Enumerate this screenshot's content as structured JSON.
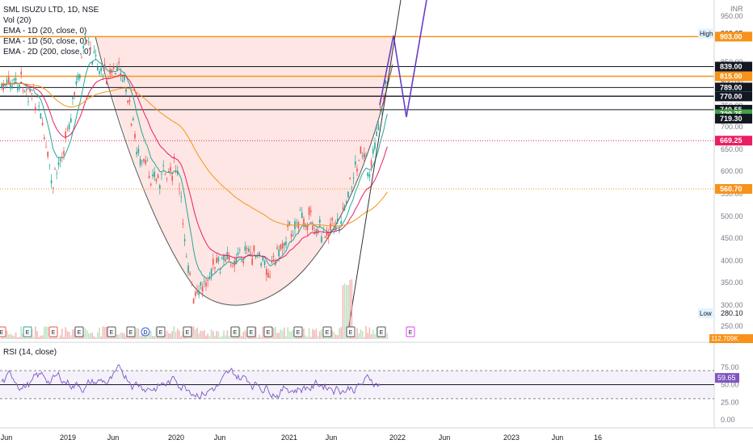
{
  "header": {
    "symbol_line": "SML ISUZU LTD, 1D, NSE",
    "vol_line": "Vol (20)",
    "ema_lines": [
      "EMA - 1D (20, close, 0)",
      "EMA - 1D (50, close, 0)",
      "EMA - 2D (200, close, 0)"
    ]
  },
  "currency": "INR",
  "rsi_title": "RSI (14, close)",
  "colors": {
    "up": "#26a69a",
    "down": "#ef5350",
    "orange": "#f7931a",
    "purple": "#6a3dc7",
    "rsi_line": "#7e57c2",
    "cup_fill": "#fbd5d0"
  },
  "chart_data": {
    "type": "candlestick",
    "price_ticks": [
      "950.00",
      "850.00",
      "800.00",
      "750.00",
      "700.00",
      "650.00",
      "600.00",
      "550.00",
      "500.00",
      "450.00",
      "400.00",
      "350.00",
      "300.00",
      "250.00"
    ],
    "price_range": [
      240,
      960
    ],
    "price_labels": [
      {
        "value": 903.0,
        "text": "903.00",
        "bg": "#f7931a",
        "fg": "#ffffff"
      },
      {
        "value": 839.0,
        "text": "839.00",
        "bg": "#131722",
        "fg": "#ffffff"
      },
      {
        "value": 815.0,
        "text": "815.00",
        "bg": "#f7931a",
        "fg": "#ffffff"
      },
      {
        "value": 789.0,
        "text": "789.00",
        "bg": "#131722",
        "fg": "#ffffff"
      },
      {
        "value": 770.65,
        "text": "770.65",
        "bg": "#26a69a",
        "fg": "#ffffff"
      },
      {
        "value": 770.0,
        "text": "770.00",
        "bg": "#131722",
        "fg": "#ffffff"
      },
      {
        "value": 740.55,
        "text": "740.55",
        "bg": "#131722",
        "fg": "#ffffff"
      },
      {
        "value": 729.75,
        "text": "729.75",
        "bg": "#43a047",
        "fg": "#ffffff"
      },
      {
        "value": 719.3,
        "text": "719.30",
        "bg": "#131722",
        "fg": "#ffffff"
      },
      {
        "value": 669.25,
        "text": "669.25",
        "bg": "#e91e63",
        "fg": "#ffffff"
      },
      {
        "value": 560.7,
        "text": "560.70",
        "bg": "#f7931a",
        "fg": "#ffffff"
      }
    ],
    "high": {
      "label": "High",
      "value": "909.95"
    },
    "low": {
      "label": "Low",
      "value": "280.10"
    },
    "volume_label": "112.709K",
    "rsi": {
      "ticks": [
        "75.00",
        "50.00",
        "25.00",
        "0.00"
      ],
      "bands": [
        70,
        30
      ],
      "current": "59.65"
    },
    "x_ticks": [
      "Jun",
      "2019",
      "Jun",
      "2020",
      "Jun",
      "2021",
      "Jun",
      "2022",
      "Jun",
      "2023",
      "Jun",
      "16"
    ],
    "events": [
      "E",
      "E",
      "E",
      "E",
      "E",
      "E",
      "D",
      "E",
      "E",
      "E",
      "E",
      "E",
      "E",
      "E",
      "E",
      "E",
      "E",
      "E"
    ],
    "horizontal_levels": [
      903,
      839,
      815,
      789,
      770.65,
      770,
      740.55,
      669.25,
      560.7
    ],
    "price_path": [
      [
        "2018-05",
        790
      ],
      [
        "2018-07",
        800
      ],
      [
        "2018-09",
        760
      ],
      [
        "2018-11",
        560
      ],
      [
        "2019-01",
        700
      ],
      [
        "2019-03",
        890
      ],
      [
        "2019-05",
        820
      ],
      [
        "2019-07",
        830
      ],
      [
        "2019-09",
        620
      ],
      [
        "2019-11",
        580
      ],
      [
        "2020-01",
        610
      ],
      [
        "2020-03",
        300
      ],
      [
        "2020-05",
        380
      ],
      [
        "2020-07",
        400
      ],
      [
        "2020-09",
        420
      ],
      [
        "2020-11",
        380
      ],
      [
        "2021-01",
        470
      ],
      [
        "2021-03",
        500
      ],
      [
        "2021-05",
        460
      ],
      [
        "2021-07",
        490
      ],
      [
        "2021-09",
        640
      ],
      [
        "2021-10",
        600
      ],
      [
        "2021-11",
        710
      ],
      [
        "2021-12",
        815
      ]
    ]
  }
}
